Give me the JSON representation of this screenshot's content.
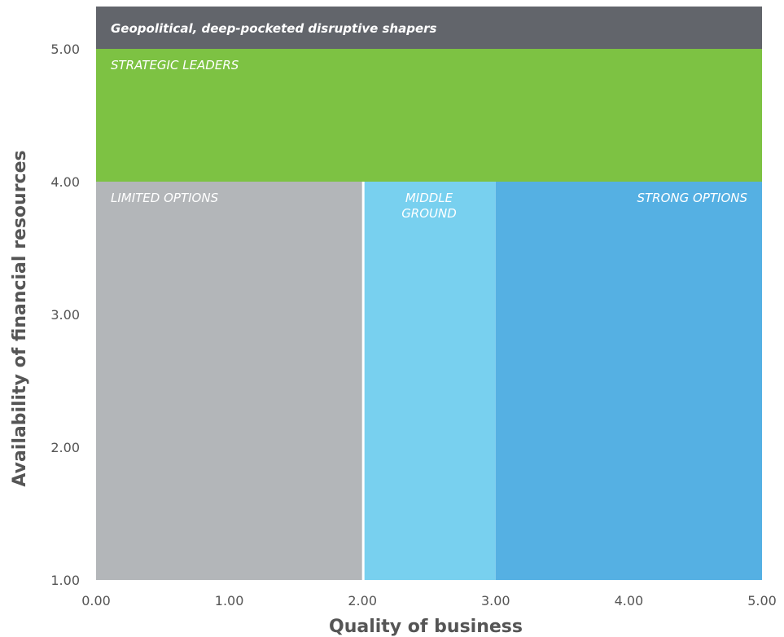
{
  "chart_data": {
    "type": "matrix",
    "xlabel": "Quality of business",
    "ylabel": "Availability of financial resources",
    "xlim": [
      0,
      5
    ],
    "ylim": [
      1,
      5
    ],
    "x_ticks": [
      "0.00",
      "1.00",
      "2.00",
      "3.00",
      "4.00",
      "5.00"
    ],
    "y_ticks": [
      "1.00",
      "2.00",
      "3.00",
      "4.00",
      "5.00"
    ],
    "banner": {
      "label": "Geopolitical, deep-pocketed disruptive shapers",
      "color": "#62656b"
    },
    "regions": [
      {
        "key": "strategic-leaders",
        "label_lines": [
          "STRATEGIC LEADERS"
        ],
        "x0": 0,
        "x1": 5,
        "y0": 4,
        "y1": 5,
        "color": "#7dc243",
        "anchor": "start"
      },
      {
        "key": "limited-options",
        "label_lines": [
          "LIMITED OPTIONS"
        ],
        "x0": 0,
        "x1": 2,
        "y0": 1,
        "y1": 4,
        "color": "#b3b6b9",
        "anchor": "start"
      },
      {
        "key": "middle-ground",
        "label_lines": [
          "MIDDLE",
          "GROUND"
        ],
        "x0": 2,
        "x1": 3,
        "y0": 1,
        "y1": 4,
        "color": "#78d0ef",
        "anchor": "middle"
      },
      {
        "key": "strong-options",
        "label_lines": [
          "STRONG OPTIONS"
        ],
        "x0": 3,
        "x1": 5,
        "y0": 1,
        "y1": 4,
        "color": "#55b0e3",
        "anchor": "end"
      }
    ]
  }
}
